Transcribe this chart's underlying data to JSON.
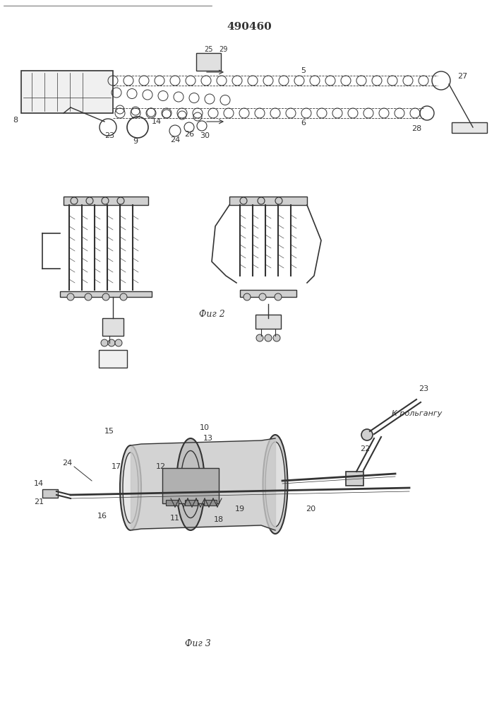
{
  "title": "490460",
  "bg_color": "#ffffff",
  "line_color": "#333333",
  "fig2_label": "Фиг 2",
  "fig3_label": "Фиг 3",
  "к_рольгангу": "К рольгангу"
}
